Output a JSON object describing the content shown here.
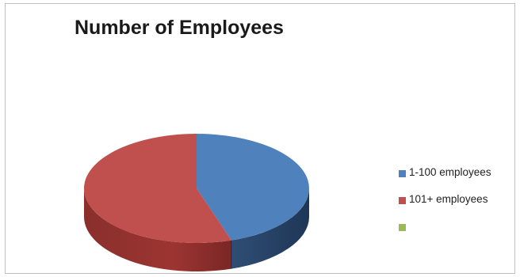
{
  "chart_data": {
    "type": "pie",
    "title": "Number of Employees",
    "categories": [
      "1-100 employees",
      "101+ employees",
      ""
    ],
    "values": [
      45,
      55,
      0
    ],
    "legend_position": "right",
    "three_d": true,
    "colors": [
      "#4f81bd",
      "#c0504d",
      "#9bbb59"
    ]
  }
}
